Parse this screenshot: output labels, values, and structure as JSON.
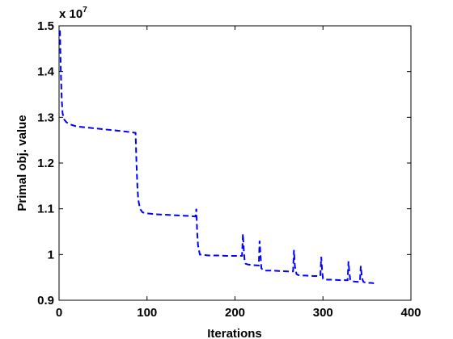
{
  "chart_data": {
    "type": "line",
    "title": "",
    "xlabel": "Iterations",
    "ylabel": "Primal obj. value",
    "xlim": [
      0,
      400
    ],
    "ylim": [
      0.9,
      1.5
    ],
    "y_multiplier": {
      "base": "x 10",
      "exponent": "7"
    },
    "x_ticks": [
      "0",
      "100",
      "200",
      "300",
      "400"
    ],
    "y_ticks": [
      "0.9",
      "1",
      "1.1",
      "1.2",
      "1.3",
      "1.4",
      "1.5"
    ],
    "x_tick_values": [
      0,
      100,
      200,
      300,
      400
    ],
    "y_tick_values": [
      0.9,
      1.0,
      1.1,
      1.2,
      1.3,
      1.4,
      1.5
    ],
    "grid": false,
    "series": [
      {
        "color": "#0000ff",
        "style": "dashed",
        "x": [
          1,
          2,
          3,
          4,
          5,
          6,
          8,
          10,
          15,
          20,
          30,
          40,
          50,
          60,
          70,
          80,
          87,
          88,
          89,
          90,
          92,
          95,
          100,
          110,
          120,
          130,
          140,
          150,
          155,
          156,
          157,
          158,
          160,
          165,
          170,
          180,
          190,
          200,
          208,
          209,
          210,
          211,
          212,
          215,
          220,
          227,
          228,
          229,
          230,
          232,
          235,
          240,
          250,
          260,
          266,
          267,
          268,
          270,
          272,
          275,
          280,
          290,
          297,
          298,
          299,
          300,
          302,
          305,
          310,
          320,
          328,
          329,
          330,
          331,
          332,
          335,
          340,
          342,
          343,
          344,
          345,
          346,
          348,
          350,
          355,
          358
        ],
        "y": [
          1.49,
          1.4,
          1.34,
          1.31,
          1.3,
          1.295,
          1.29,
          1.287,
          1.283,
          1.28,
          1.278,
          1.276,
          1.274,
          1.272,
          1.27,
          1.268,
          1.266,
          1.2,
          1.15,
          1.12,
          1.1,
          1.092,
          1.09,
          1.088,
          1.087,
          1.086,
          1.085,
          1.084,
          1.083,
          1.1,
          1.05,
          1.02,
          1.0,
          0.999,
          0.998,
          0.998,
          0.997,
          0.997,
          0.997,
          1.045,
          1.01,
          0.985,
          0.98,
          0.978,
          0.977,
          0.976,
          1.03,
          1.0,
          0.97,
          0.966,
          0.965,
          0.965,
          0.964,
          0.963,
          0.963,
          1.01,
          0.975,
          0.957,
          0.955,
          0.954,
          0.954,
          0.953,
          0.953,
          0.995,
          0.965,
          0.947,
          0.946,
          0.945,
          0.945,
          0.944,
          0.944,
          0.985,
          0.96,
          0.945,
          0.942,
          0.941,
          0.94,
          0.94,
          0.975,
          0.955,
          0.945,
          0.94,
          0.939,
          0.938,
          0.938,
          0.937
        ]
      }
    ]
  }
}
